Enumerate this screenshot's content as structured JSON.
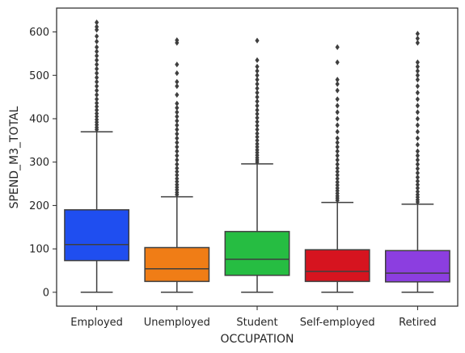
{
  "chart_data": {
    "type": "box",
    "title": "",
    "xlabel": "OCCUPATION",
    "ylabel": "SPEND_M3_TOTAL",
    "ylim": [
      -32,
      655
    ],
    "yticks": [
      0,
      100,
      200,
      300,
      400,
      500,
      600
    ],
    "grid": false,
    "categories": [
      "Employed",
      "Unemployed",
      "Student",
      "Self-employed",
      "Retired"
    ],
    "colors": [
      "#1f4ef0",
      "#f07d16",
      "#26bd42",
      "#d6141f",
      "#8c3ee0"
    ],
    "boxes": [
      {
        "category": "Employed",
        "min": 0,
        "q1": 73,
        "median": 110,
        "q3": 190,
        "whisker_high": 370,
        "outliers": [
          375,
          380,
          386,
          392,
          398,
          405,
          412,
          420,
          428,
          436,
          445,
          455,
          465,
          475,
          485,
          495,
          505,
          515,
          525,
          535,
          545,
          555,
          565,
          578,
          590,
          605,
          612,
          622
        ]
      },
      {
        "category": "Unemployed",
        "min": 0,
        "q1": 25,
        "median": 54,
        "q3": 103,
        "whisker_high": 220,
        "outliers": [
          225,
          230,
          236,
          242,
          248,
          255,
          262,
          270,
          278,
          286,
          295,
          305,
          315,
          325,
          335,
          345,
          355,
          365,
          375,
          385,
          395,
          405,
          415,
          425,
          435,
          455,
          475,
          485,
          505,
          525,
          575,
          581
        ]
      },
      {
        "category": "Student",
        "min": 0,
        "q1": 39,
        "median": 76,
        "q3": 140,
        "whisker_high": 296,
        "outliers": [
          300,
          305,
          310,
          316,
          322,
          328,
          335,
          342,
          350,
          358,
          366,
          375,
          384,
          393,
          402,
          411,
          420,
          430,
          440,
          450,
          460,
          470,
          480,
          490,
          500,
          510,
          520,
          535,
          580
        ]
      },
      {
        "category": "Self-employed",
        "min": 0,
        "q1": 25,
        "median": 48,
        "q3": 98,
        "whisker_high": 207,
        "outliers": [
          212,
          217,
          222,
          228,
          234,
          240,
          247,
          254,
          262,
          270,
          278,
          286,
          295,
          305,
          315,
          325,
          335,
          345,
          355,
          370,
          385,
          400,
          415,
          430,
          445,
          465,
          480,
          490,
          530,
          565
        ]
      },
      {
        "category": "Retired",
        "min": 0,
        "q1": 24,
        "median": 44,
        "q3": 96,
        "whisker_high": 203,
        "outliers": [
          208,
          213,
          219,
          225,
          232,
          240,
          248,
          256,
          265,
          275,
          285,
          295,
          305,
          315,
          325,
          340,
          355,
          370,
          385,
          400,
          415,
          430,
          445,
          460,
          475,
          490,
          500,
          510,
          520,
          530,
          575,
          585,
          596
        ]
      }
    ]
  }
}
